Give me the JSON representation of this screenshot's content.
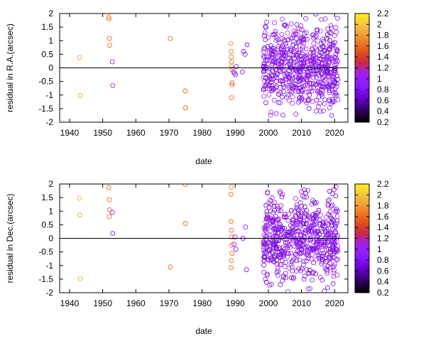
{
  "chart_data": [
    {
      "type": "scatter",
      "xlabel": "date",
      "ylabel": "residual in R.A.(arcsec)",
      "xlim": [
        1937,
        2024
      ],
      "ylim": [
        -2,
        2
      ],
      "xticks": [
        "1940",
        "1950",
        "1960",
        "1970",
        "1980",
        "1990",
        "2000",
        "2010",
        "2020"
      ],
      "yticks": [
        "-2",
        "-1.5",
        "-1",
        "-0.5",
        "0",
        "0.5",
        "1",
        "1.5",
        "2"
      ],
      "zero_line": true,
      "marker": "open-circle",
      "colorbar": {
        "range": [
          0.2,
          2.2
        ],
        "ticks": [
          "0.2",
          "0.4",
          "0.6",
          "0.8",
          "1",
          "1.2",
          "1.4",
          "1.6",
          "1.8",
          "2",
          "2.2"
        ],
        "palette": [
          "#000000",
          "#330066",
          "#6600cc",
          "#8a1aff",
          "#a020f0",
          "#cc2a3a",
          "#e85a1a",
          "#f09030",
          "#f5c040",
          "#ffee20"
        ]
      },
      "points": [
        [
          1943.0,
          0.38,
          1.85
        ],
        [
          1943.2,
          -1.02,
          1.85
        ],
        [
          1951.8,
          1.87,
          1.65
        ],
        [
          1951.9,
          1.8,
          1.65
        ],
        [
          1952.0,
          1.08,
          1.6
        ],
        [
          1952.1,
          0.83,
          1.6
        ],
        [
          1952.9,
          0.22,
          0.9
        ],
        [
          1953.0,
          -0.65,
          0.95
        ],
        [
          1970.4,
          1.08,
          1.6
        ],
        [
          1974.9,
          -0.85,
          1.6
        ],
        [
          1975.0,
          -1.47,
          1.6
        ],
        [
          1988.7,
          0.9,
          1.7
        ],
        [
          1988.8,
          0.6,
          1.7
        ],
        [
          1988.8,
          0.4,
          1.65
        ],
        [
          1988.9,
          0.22,
          1.6
        ],
        [
          1988.9,
          0.05,
          1.7
        ],
        [
          1989.0,
          -0.05,
          1.6
        ],
        [
          1989.1,
          -0.55,
          1.6
        ],
        [
          1989.0,
          -0.62,
          1.55
        ],
        [
          1988.9,
          -1.1,
          1.6
        ],
        [
          1989.5,
          -0.15,
          1.0
        ],
        [
          1989.8,
          -0.2,
          0.9
        ],
        [
          1990.1,
          -0.25,
          0.9
        ],
        [
          1990.3,
          0.05,
          0.85
        ],
        [
          1992.5,
          0.6,
          0.85
        ],
        [
          1993.0,
          0.5,
          0.85
        ],
        [
          1993.6,
          0.85,
          0.85
        ],
        [
          1992.2,
          -0.15,
          0.85
        ]
      ],
      "dense_regions": [
        {
          "x": [
            1998.5,
            2021.0
          ],
          "y": [
            -2.0,
            2.0
          ],
          "count": 620,
          "color": [
            0.6,
            1.15
          ]
        }
      ]
    },
    {
      "type": "scatter",
      "xlabel": "date",
      "ylabel": "residual in Dec.(arcsec)",
      "xlim": [
        1937,
        2024
      ],
      "ylim": [
        -2,
        2
      ],
      "xticks": [
        "1940",
        "1950",
        "1960",
        "1970",
        "1980",
        "1990",
        "2000",
        "2010",
        "2020"
      ],
      "yticks": [
        "-2",
        "-1.5",
        "-1",
        "-0.5",
        "0",
        "0.5",
        "1",
        "1.5",
        "2"
      ],
      "zero_line": true,
      "marker": "open-circle",
      "colorbar": {
        "range": [
          0.2,
          2.2
        ],
        "ticks": [
          "0.2",
          "0.4",
          "0.6",
          "0.8",
          "1",
          "1.2",
          "1.4",
          "1.6",
          "1.8",
          "2",
          "2.2"
        ],
        "palette": [
          "#000000",
          "#330066",
          "#6600cc",
          "#8a1aff",
          "#a020f0",
          "#cc2a3a",
          "#e85a1a",
          "#f09030",
          "#f5c040",
          "#ffee20"
        ]
      },
      "points": [
        [
          1943.0,
          1.48,
          1.85
        ],
        [
          1943.1,
          0.85,
          1.85
        ],
        [
          1943.2,
          -1.48,
          1.85
        ],
        [
          1951.8,
          1.87,
          1.65
        ],
        [
          1952.0,
          1.42,
          1.6
        ],
        [
          1952.1,
          1.05,
          1.6
        ],
        [
          1952.0,
          0.8,
          1.6
        ],
        [
          1952.9,
          0.95,
          0.9
        ],
        [
          1953.0,
          0.18,
          0.95
        ],
        [
          1970.4,
          -1.05,
          1.6
        ],
        [
          1974.9,
          1.98,
          1.6
        ],
        [
          1975.0,
          0.55,
          1.6
        ],
        [
          1988.8,
          1.88,
          1.7
        ],
        [
          1988.7,
          1.62,
          1.65
        ],
        [
          1988.8,
          0.62,
          1.6
        ],
        [
          1988.9,
          0.3,
          1.6
        ],
        [
          1989.0,
          0.05,
          1.6
        ],
        [
          1988.9,
          -0.25,
          1.65
        ],
        [
          1989.0,
          -0.55,
          1.6
        ],
        [
          1988.9,
          -0.82,
          1.6
        ],
        [
          1988.8,
          -1.08,
          1.6
        ],
        [
          1989.6,
          -0.22,
          0.9
        ],
        [
          1989.9,
          0.05,
          0.9
        ],
        [
          1990.2,
          -0.4,
          0.85
        ],
        [
          1992.3,
          0.0,
          0.85
        ],
        [
          1993.1,
          0.42,
          0.85
        ],
        [
          1993.4,
          -1.15,
          0.85
        ]
      ],
      "dense_regions": [
        {
          "x": [
            1998.5,
            2021.0
          ],
          "y": [
            -2.0,
            2.0
          ],
          "count": 620,
          "color": [
            0.6,
            1.15
          ]
        }
      ]
    }
  ]
}
